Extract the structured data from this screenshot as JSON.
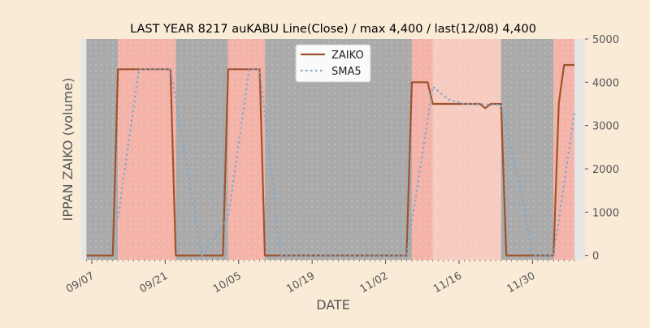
{
  "chart_data": {
    "type": "line",
    "title": "LAST YEAR 8217 auKABU Line(Close) / max 4,400 / last(12/08) 4,400",
    "xlabel": "DATE",
    "ylabel": "IPPAN ZAIKO (volume)",
    "x_range": [
      "2023-09-05",
      "2023-12-10"
    ],
    "ylim": [
      -100,
      5000
    ],
    "y_ticks": [
      0,
      1000,
      2000,
      3000,
      4000,
      5000
    ],
    "x_ticks": [
      {
        "date": "2023-09-07",
        "label": "09/07"
      },
      {
        "date": "2023-09-21",
        "label": "09/21"
      },
      {
        "date": "2023-10-05",
        "label": "10/05"
      },
      {
        "date": "2023-10-19",
        "label": "10/19"
      },
      {
        "date": "2023-11-02",
        "label": "11/02"
      },
      {
        "date": "2023-11-16",
        "label": "11/16"
      },
      {
        "date": "2023-11-30",
        "label": "11/30"
      }
    ],
    "y_axis_side": "right",
    "grid": false,
    "legend_position": "top-center",
    "background_bands": [
      {
        "start": "2023-09-06",
        "end": "2023-09-12",
        "color": "#aaaaaa"
      },
      {
        "start": "2023-09-12",
        "end": "2023-09-23",
        "color": "#f4b3a8"
      },
      {
        "start": "2023-09-23",
        "end": "2023-10-03",
        "color": "#aaaaaa"
      },
      {
        "start": "2023-10-03",
        "end": "2023-10-10",
        "color": "#f4b3a8"
      },
      {
        "start": "2023-10-10",
        "end": "2023-11-07",
        "color": "#aaaaaa"
      },
      {
        "start": "2023-11-07",
        "end": "2023-11-11",
        "color": "#f4b3a8"
      },
      {
        "start": "2023-11-11",
        "end": "2023-11-24",
        "color": "#f6cbc0"
      },
      {
        "start": "2023-11-24",
        "end": "2023-12-04",
        "color": "#aaaaaa"
      },
      {
        "start": "2023-12-04",
        "end": "2023-12-08",
        "color": "#f4b3a8"
      }
    ],
    "series": [
      {
        "name": "ZAIKO",
        "color": "#a0522d",
        "style": "solid",
        "points": [
          {
            "x": "2023-09-06",
            "y": 0
          },
          {
            "x": "2023-09-11",
            "y": 0
          },
          {
            "x": "2023-09-12",
            "y": 4300
          },
          {
            "x": "2023-09-22",
            "y": 4300
          },
          {
            "x": "2023-09-23",
            "y": 0
          },
          {
            "x": "2023-10-02",
            "y": 0
          },
          {
            "x": "2023-10-03",
            "y": 4300
          },
          {
            "x": "2023-10-09",
            "y": 4300
          },
          {
            "x": "2023-10-10",
            "y": 0
          },
          {
            "x": "2023-11-06",
            "y": 0
          },
          {
            "x": "2023-11-07",
            "y": 4000
          },
          {
            "x": "2023-11-10",
            "y": 4000
          },
          {
            "x": "2023-11-11",
            "y": 3500
          },
          {
            "x": "2023-11-20",
            "y": 3500
          },
          {
            "x": "2023-11-21",
            "y": 3400
          },
          {
            "x": "2023-11-22",
            "y": 3500
          },
          {
            "x": "2023-11-24",
            "y": 3500
          },
          {
            "x": "2023-11-25",
            "y": 0
          },
          {
            "x": "2023-12-04",
            "y": 0
          },
          {
            "x": "2023-12-05",
            "y": 3500
          },
          {
            "x": "2023-12-06",
            "y": 4400
          },
          {
            "x": "2023-12-08",
            "y": 4400
          }
        ]
      },
      {
        "name": "SMA5",
        "color": "#7fa8cc",
        "style": "dotted",
        "points": [
          {
            "x": "2023-09-12",
            "y": 860
          },
          {
            "x": "2023-09-16",
            "y": 4300
          },
          {
            "x": "2023-09-22",
            "y": 4300
          },
          {
            "x": "2023-09-28",
            "y": 0
          },
          {
            "x": "2023-10-03",
            "y": 860
          },
          {
            "x": "2023-10-07",
            "y": 4300
          },
          {
            "x": "2023-10-09",
            "y": 4300
          },
          {
            "x": "2023-10-13",
            "y": 0
          },
          {
            "x": "2023-11-06",
            "y": 0
          },
          {
            "x": "2023-11-11",
            "y": 3900
          },
          {
            "x": "2023-11-14",
            "y": 3600
          },
          {
            "x": "2023-11-17",
            "y": 3500
          },
          {
            "x": "2023-11-24",
            "y": 3480
          },
          {
            "x": "2023-11-28",
            "y": 1400
          },
          {
            "x": "2023-11-30",
            "y": 0
          },
          {
            "x": "2023-12-04",
            "y": 0
          },
          {
            "x": "2023-12-08",
            "y": 3300
          }
        ]
      }
    ]
  }
}
